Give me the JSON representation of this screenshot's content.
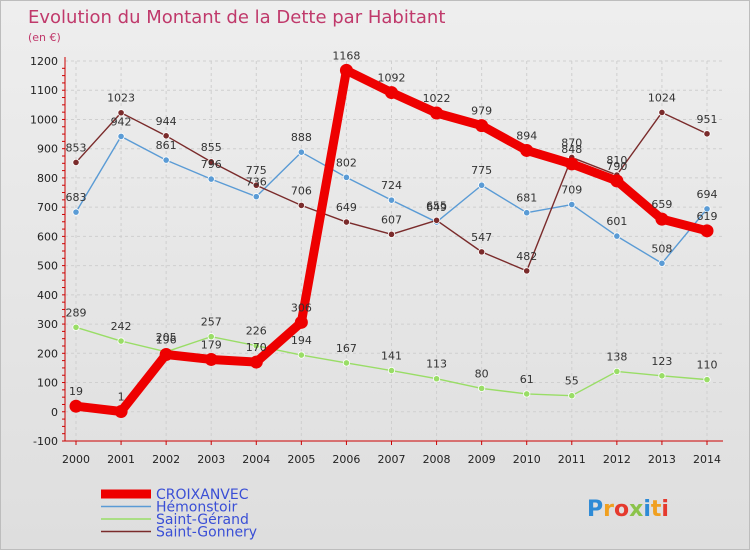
{
  "title": "Evolution du Montant de la Dette par Habitant",
  "subtitle": "(en €)",
  "logo": "Proxiti",
  "chart_data": {
    "type": "line",
    "title": "Evolution du Montant de la Dette par Habitant",
    "subtitle": "(en €)",
    "x": [
      "2000",
      "2001",
      "2002",
      "2003",
      "2004",
      "2005",
      "2006",
      "2007",
      "2008",
      "2009",
      "2010",
      "2011",
      "2012",
      "2013",
      "2014"
    ],
    "ylim": [
      -100,
      1200
    ],
    "yticks": [
      -100,
      0,
      100,
      200,
      300,
      400,
      500,
      600,
      700,
      800,
      900,
      1000,
      1100,
      1200
    ],
    "grid": true,
    "legend_position": "bottom-left",
    "series": [
      {
        "name": "CROIXANVEC",
        "color": "#ee0000",
        "values": [
          19,
          1,
          196,
          179,
          170,
          306,
          1168,
          1092,
          1022,
          979,
          894,
          848,
          790,
          659,
          619
        ]
      },
      {
        "name": "Hémonstoir",
        "color": "#5a9bd5",
        "values": [
          683,
          942,
          861,
          796,
          736,
          888,
          802,
          724,
          649,
          775,
          681,
          709,
          601,
          508,
          694
        ]
      },
      {
        "name": "Saint-Gérand",
        "color": "#99dd66",
        "values": [
          289,
          242,
          205,
          257,
          226,
          194,
          167,
          141,
          113,
          80,
          61,
          55,
          138,
          123,
          110
        ]
      },
      {
        "name": "Saint-Gonnery",
        "color": "#7a2b2b",
        "values": [
          853,
          1023,
          944,
          855,
          775,
          706,
          649,
          607,
          655,
          547,
          482,
          870,
          810,
          1024,
          951
        ]
      }
    ],
    "data_labels": {
      "CROIXANVEC": [
        "19",
        "1",
        "196",
        "179",
        "170",
        "306",
        "1168",
        "1092",
        "1022",
        "979",
        "894",
        "848",
        "790",
        "659",
        "619"
      ],
      "Hémonstoir": [
        "683",
        "942",
        "861",
        "796",
        "736",
        "888",
        "802",
        "724",
        "649",
        "775",
        "681",
        "709",
        "601",
        "508",
        "694"
      ],
      "Saint-Gérand": [
        "289",
        "242",
        "205",
        "257",
        "226",
        "194",
        "167",
        "141",
        "113",
        "80",
        "61",
        "55",
        "138",
        "123",
        "110"
      ],
      "Saint-Gonnery": [
        "853",
        "1023",
        "944",
        "855",
        "775",
        "706",
        "649",
        "607",
        "655",
        "547",
        "482",
        "870",
        "810",
        "1024",
        "951"
      ]
    }
  }
}
